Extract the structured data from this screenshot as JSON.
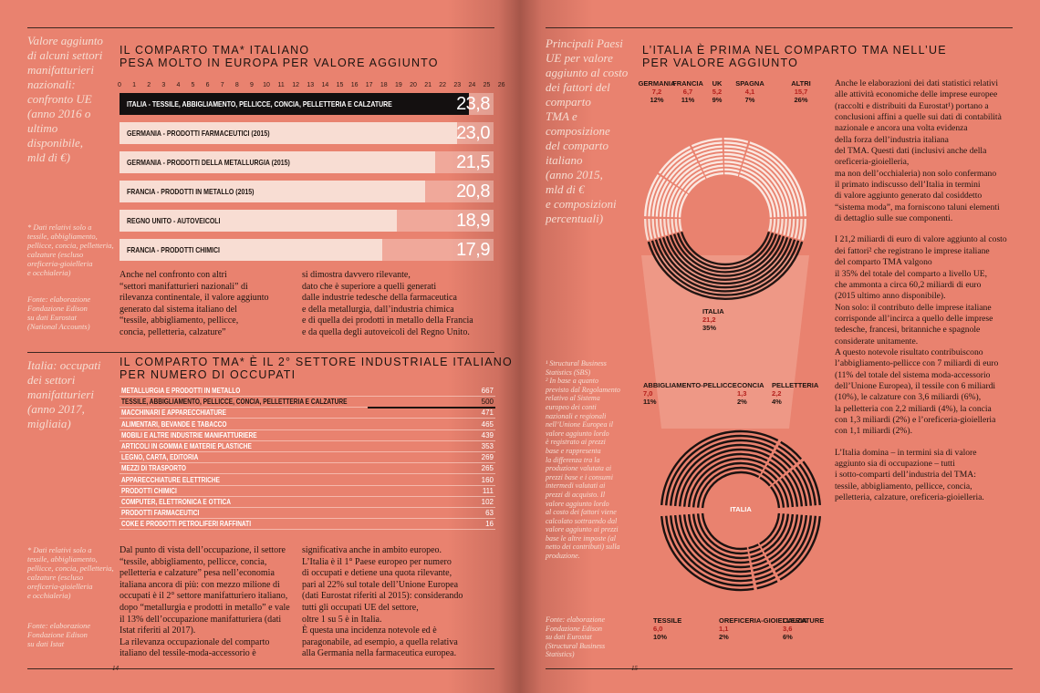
{
  "left_page": {
    "s1": {
      "caption": [
        "Valore aggiunto",
        "di alcuni settori",
        "manifatturieri",
        "nazionali:",
        "confronto UE",
        "(anno 2016 o",
        "ultimo disponibile,",
        "mld di €)"
      ],
      "title": [
        "IL COMPARTO TMA* ITALIANO",
        "PESA MOLTO IN EUROPA PER VALORE AGGIUNTO"
      ],
      "note": [
        "* Dati relativi solo a",
        "tessile, abbigliamento,",
        "pellicce, concia, pelletteria,",
        "calzature (escluso",
        "oreficeria-gioielleria",
        "e occhialeria)"
      ],
      "source": [
        "Fonte: elaborazione",
        "Fondazione Edison",
        "su dati Eurostat",
        "(National Accounts)"
      ],
      "body_left": [
        "Anche nel confronto con altri",
        "“settori manifatturieri nazionali” di",
        "rilevanza continentale, il valore aggiunto",
        "generato dal sistema italiano del",
        "“tessile, abbigliamento, pellicce,",
        "concia, pelletteria, calzature”"
      ],
      "body_right": [
        "si dimostra davvero rilevante,",
        "dato che è superiore a quelli generati",
        "dalle industrie tedesche della farmaceutica",
        "e della metallurgia, dall’industria chimica",
        "e di quella dei prodotti in metallo della Francia",
        "e da quella degli autoveicoli del Regno Unito."
      ]
    },
    "s2": {
      "caption": [
        "Italia: occupati",
        "dei settori",
        "manifatturieri",
        "(anno 2017,",
        "migliaia)"
      ],
      "title": [
        "IL COMPARTO TMA* È IL 2° SETTORE INDUSTRIALE ITALIANO",
        "PER NUMERO DI OCCUPATI"
      ],
      "note": [
        "* Dati relativi solo a",
        "tessile, abbigliamento,",
        "pellicce, concia, pelletteria,",
        "calzature (escluso",
        "oreficeria-gioielleria",
        "e occhialeria)"
      ],
      "source": [
        "Fonte: elaborazione",
        "Fondazione Edison",
        "su dati Istat"
      ],
      "body_left": [
        "Dal punto di vista dell’occupazione, il settore",
        "“tessile, abbigliamento, pellicce, concia,",
        "pelletteria e calzature” pesa nell’economia",
        "italiana ancora di più: con mezzo milione di",
        "occupati è il 2° settore manifatturiero italiano,",
        "dopo “metallurgia e prodotti in metallo” e vale",
        "il 13% dell’occupazione manifatturiera (dati",
        "Istat riferiti al 2017).",
        "La rilevanza occupazionale del comparto",
        "italiano del tessile-moda-accessorio è"
      ],
      "body_right": [
        "significativa anche in ambito europeo.",
        "L’Italia è il 1° Paese europeo per numero",
        "di occupati e detiene una quota rilevante,",
        "pari al 22% sul totale dell’Unione Europea",
        "(dati Eurostat riferiti al 2015): considerando",
        "tutti gli occupati UE del settore,",
        "oltre 1 su 5 è in Italia.",
        "È questa una incidenza notevole ed è",
        "paragonabile, ad esempio, a quella relativa",
        "alla Germania nella farmaceutica europea."
      ]
    },
    "page_number": "14"
  },
  "chart_data": [
    {
      "type": "bar",
      "orientation": "horizontal",
      "xlim": [
        0,
        25
      ],
      "ticks": [
        "0",
        "1",
        "2",
        "3",
        "4",
        "5",
        "6",
        "7",
        "8",
        "9",
        "10",
        "11",
        "12",
        "13",
        "14",
        "15",
        "16",
        "17",
        "18",
        "19",
        "20",
        "21",
        "22",
        "23",
        "24",
        "25",
        "26"
      ],
      "categories": [
        "ITALIA - TESSILE, ABBIGLIAMENTO, PELLICCE, CONCIA, PELLETTERIA E CALZATURE",
        "GERMANIA - PRODOTTI FARMACEUTICI (2015)",
        "GERMANIA - PRODOTTI DELLA METALLURGIA (2015)",
        "FRANCIA - PRODOTTI IN METALLO (2015)",
        "REGNO UNITO - AUTOVEICOLI",
        "FRANCIA - PRODOTTI CHIMICI"
      ],
      "values": [
        23.8,
        23.0,
        21.5,
        20.8,
        18.9,
        17.9
      ],
      "labels": [
        "23,8",
        "23,0",
        "21,5",
        "20,8",
        "18,9",
        "17,9"
      ],
      "highlight": 0
    },
    {
      "type": "bar",
      "orientation": "horizontal",
      "xlim": [
        0,
        667
      ],
      "categories": [
        "METALLURGIA E PRODOTTI IN METALLO",
        "TESSILE, ABBIGLIAMENTO, PELLICCE, CONCIA, PELLETTERIA E CALZATURE",
        "MACCHINARI E APPARECCHIATURE",
        "ALIMENTARI, BEVANDE E TABACCO",
        "MOBILI E ALTRE INDUSTRIE MANIFATTURIERE",
        "ARTICOLI IN GOMMA E MATERIE PLASTICHE",
        "LEGNO, CARTA, EDITORIA",
        "MEZZI DI TRASPORTO",
        "APPARECCHIATURE ELETTRICHE",
        "PRODOTTI CHIMICI",
        "COMPUTER, ELETTRONICA E OTTICA",
        "PRODOTTI FARMACEUTICI",
        "COKE E PRODOTTI PETROLIFERI RAFFINATI"
      ],
      "values": [
        667,
        500,
        471,
        465,
        439,
        353,
        269,
        265,
        160,
        111,
        102,
        63,
        16
      ],
      "highlight": 1
    },
    {
      "type": "pie",
      "title": "",
      "total": {
        "label": "ITALIA",
        "value": "21,2",
        "share": "35%"
      },
      "slices": [
        {
          "name": "GERMANIA",
          "value": 7.2,
          "label": "7,2",
          "share": "12%"
        },
        {
          "name": "FRANCIA",
          "value": 6.7,
          "label": "6,7",
          "share": "11%"
        },
        {
          "name": "UK",
          "value": 5.2,
          "label": "5,2",
          "share": "9%"
        },
        {
          "name": "SPAGNA",
          "value": 4.1,
          "label": "4,1",
          "share": "7%"
        },
        {
          "name": "ALTRI",
          "value": 15.7,
          "label": "15,7",
          "share": "26%"
        }
      ]
    },
    {
      "type": "pie",
      "center_label": "ITALIA",
      "slices": [
        {
          "name": "ABBIGLIAMENTO-PELLICCE",
          "value": 7.0,
          "label": "7,0",
          "share": "11%"
        },
        {
          "name": "CONCIA",
          "value": 1.3,
          "label": "1,3",
          "share": "2%"
        },
        {
          "name": "PELLETTERIA",
          "value": 2.2,
          "label": "2,2",
          "share": "4%"
        },
        {
          "name": "TESSILE",
          "value": 6.0,
          "label": "6,0",
          "share": "10%"
        },
        {
          "name": "OREFICERIA-GIOIELLERIA",
          "value": 1.1,
          "label": "1,1",
          "share": "2%"
        },
        {
          "name": "CALZATURE",
          "value": 3.6,
          "label": "3,6",
          "share": "6%"
        }
      ]
    }
  ],
  "right_page": {
    "caption": [
      "Principali Paesi",
      "UE per valore",
      "aggiunto al costo",
      "dei fattori del",
      "comparto",
      "TMA e",
      "composizione",
      "del comparto",
      "italiano",
      "(anno 2015,",
      "mld di €",
      "e composizioni",
      "percentuali)"
    ],
    "title": [
      "L’ITALIA È PRIMA NEL COMPARTO TMA NELL’UE",
      "PER VALORE AGGIUNTO"
    ],
    "notes": [
      "¹ Structural Business",
      "Statistics (SBS)",
      "² In base a quanto",
      "previsto dal Regolamento",
      "relativo al Sistema",
      "europeo dei conti",
      "nazionali e regionali",
      "nell’Unione Europea il",
      "valore aggiunto lordo",
      "è registrato ai prezzi",
      "base e rappresenta",
      "la differenza tra la",
      "produzione valutata ai",
      "prezzi base e i consumi",
      "intermedi valutati ai",
      "prezzi di acquisto. Il",
      "valore aggiunto lordo",
      "al costo dei fattori viene",
      "calcolato sottraendo dal",
      "valore aggiunto ai prezzi",
      "base le altre imposte (al",
      "netto dei contributi) sulla",
      "produzione."
    ],
    "source": [
      "Fonte: elaborazione",
      "Fondazione Edison",
      "su dati Eurostat",
      "(Structural Business",
      "Statistics)"
    ],
    "text": [
      "Anche le elaborazioni dei dati statistici relativi",
      "alle attività economiche delle imprese europee",
      "(raccolti e distribuiti da Eurostat¹) portano a",
      "conclusioni affini a quelle sui dati di contabilità",
      "nazionale e ancora una volta evidenza",
      "della forza dell’industria italiana",
      "del TMA. Questi dati (inclusivi anche della",
      "oreficeria-gioielleria,",
      "ma non dell’occhialeria) non solo confermano",
      "il primato indiscusso dell’Italia in termini",
      "di valore aggiunto generato dal cosiddetto",
      "“sistema moda”, ma forniscono taluni elementi",
      "di dettaglio sulle sue componenti.",
      "",
      "I 21,2 miliardi di euro di valore aggiunto al costo",
      "dei fattori² che registrano le imprese italiane",
      "del comparto TMA valgono",
      "il 35% del totale del comparto a livello UE,",
      "che ammonta a circa 60,2 miliardi di euro",
      "(2015 ultimo anno disponibile).",
      "Non solo: il contributo delle imprese italiane",
      "corrisponde all’incirca a quello delle imprese",
      "tedesche, francesi, britanniche e spagnole",
      "considerate unitamente.",
      "A questo notevole risultato contribuiscono",
      "l’abbigliamento-pellicce con 7 miliardi di euro",
      "(11% del totale del sistema moda-accessorio",
      "dell’Unione Europea), il tessile con 6 miliardi",
      "(10%), le calzature con 3,6 miliardi (6%),",
      "la pelletteria con 2,2 miliardi (4%), la concia",
      "con 1,3 miliardi (2%) e l’oreficeria-gioielleria",
      "con 1,1 miliardi (2%).",
      "",
      "L’Italia domina – in termini sia di valore",
      "aggiunto sia di occupazione – tutti",
      "i sotto-comparti dell’industria del TMA:",
      "tessile, abbigliamento, pellicce, concia,",
      "pelletteria, calzature, oreficeria-gioielleria."
    ],
    "page_number": "15"
  },
  "colors": {
    "background": "#e9826f",
    "caption": "#f6ddd2",
    "highlight_value": "#b4201c",
    "bar_light": "#f8ddd3",
    "bar_dark": "#141010"
  }
}
